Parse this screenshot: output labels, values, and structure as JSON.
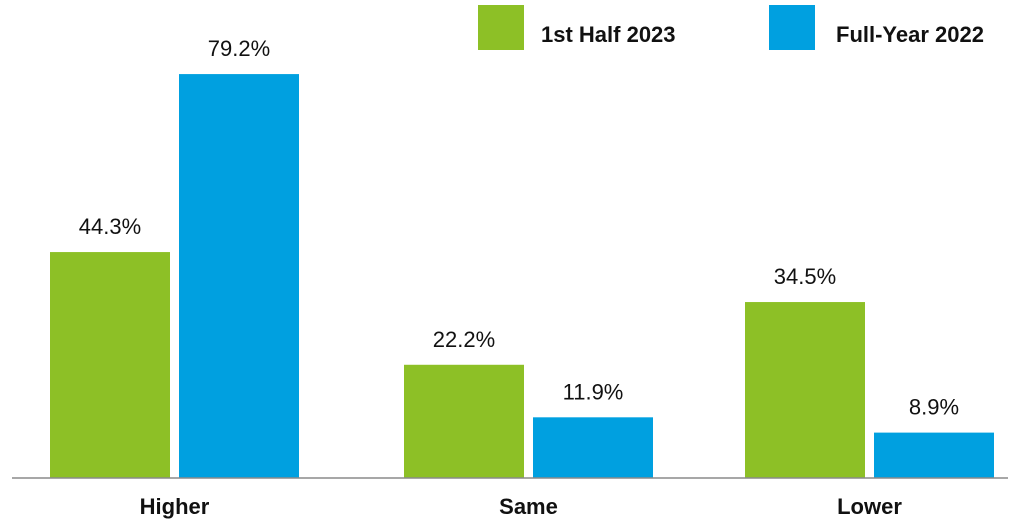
{
  "chart_data": {
    "type": "bar",
    "categories": [
      "Higher",
      "Same",
      "Lower"
    ],
    "series": [
      {
        "name": "1st Half 2023",
        "values": [
          44.3,
          22.2,
          34.5
        ],
        "labels": [
          "44.3%",
          "22.2%",
          "34.5%"
        ],
        "color": "#8dc026"
      },
      {
        "name": "Full-Year 2022",
        "values": [
          79.2,
          11.9,
          8.9
        ],
        "labels": [
          "79.2%",
          "11.9%",
          "8.9%"
        ],
        "color": "#00a0e0"
      }
    ],
    "title": "",
    "xlabel": "",
    "ylabel": "",
    "ylim": [
      0,
      80
    ],
    "grid": false,
    "legend": "top-right"
  },
  "colors": {
    "axis": "#8a8a8a",
    "text": "#111111"
  }
}
